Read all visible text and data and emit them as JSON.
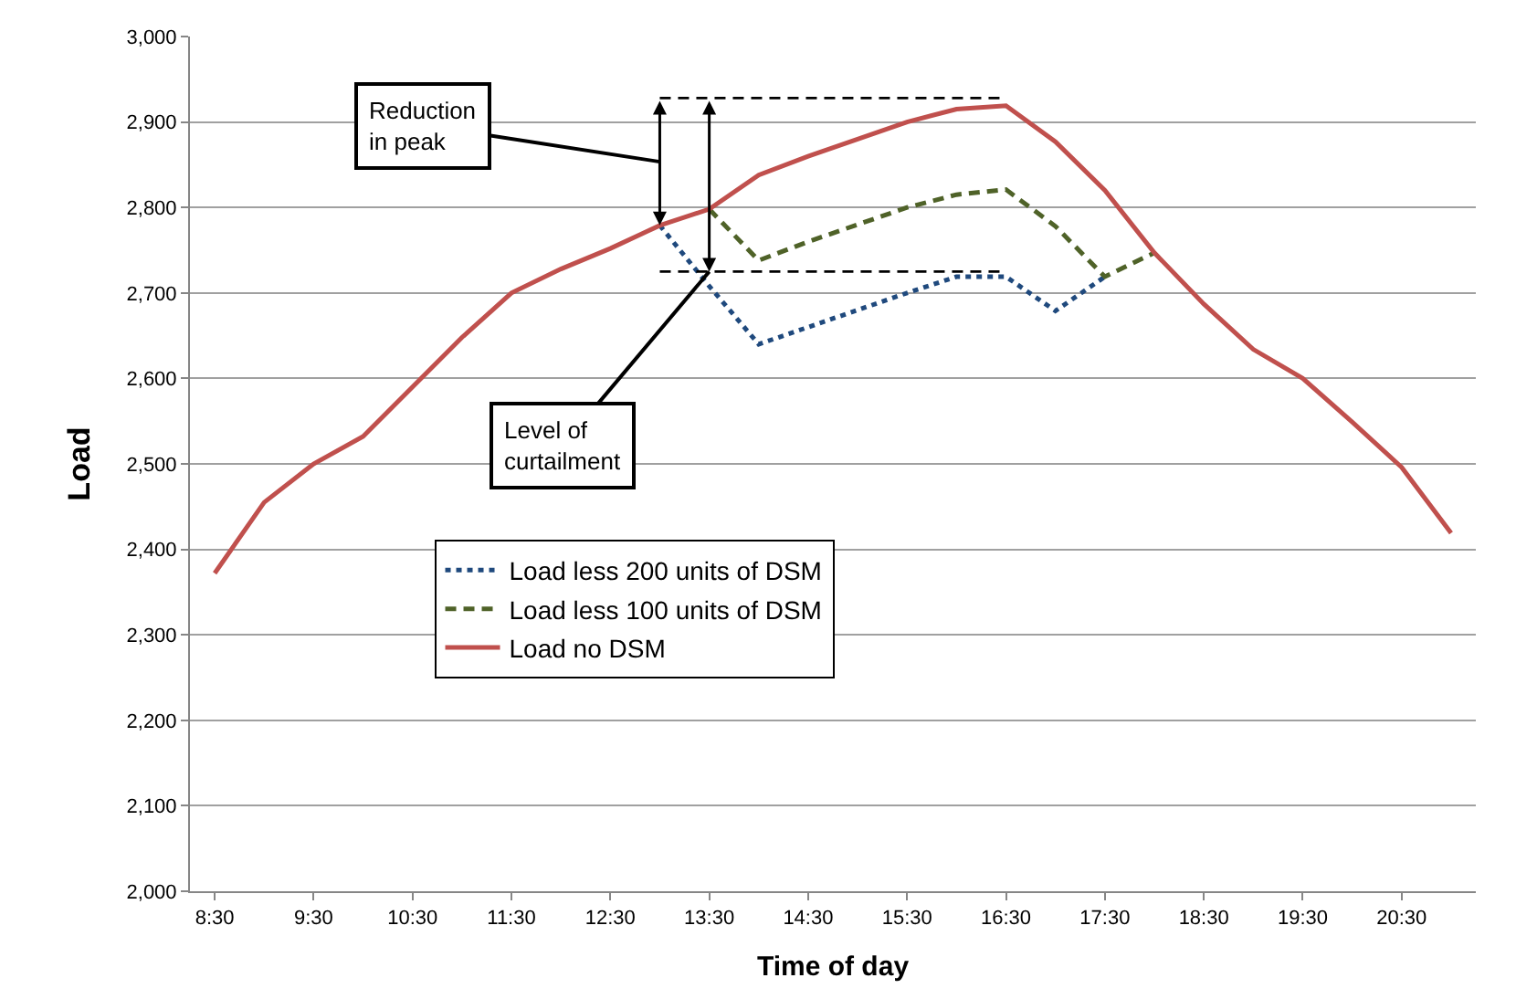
{
  "chart_data": {
    "type": "line",
    "xlabel": "Time of day",
    "ylabel": "Load",
    "categories": [
      "8:30",
      null,
      "9:30",
      null,
      "10:30",
      null,
      "11:30",
      null,
      "12:30",
      null,
      "13:30",
      null,
      "14:30",
      null,
      "15:30",
      null,
      "16:30",
      null,
      "17:30",
      null,
      "18:30",
      null,
      "19:30",
      null,
      "20:30",
      null
    ],
    "series": [
      {
        "name": "Load less 200 units of DSM",
        "color": "#1f497d",
        "line_style": "dotted",
        "values": [
          null,
          null,
          null,
          null,
          null,
          null,
          null,
          null,
          null,
          2779,
          2708,
          2640,
          2660,
          2680,
          2700,
          2719,
          2719,
          2679,
          2719,
          null,
          null,
          null,
          null,
          null,
          null,
          null
        ]
      },
      {
        "name": "Load less 100 units of DSM",
        "color": "#4f6228",
        "line_style": "dashed",
        "values": [
          null,
          null,
          null,
          null,
          null,
          null,
          null,
          null,
          null,
          null,
          2798,
          2738,
          2760,
          2780,
          2800,
          2815,
          2821,
          2778,
          2719,
          2747,
          null,
          null,
          null,
          null,
          null,
          null
        ]
      },
      {
        "name": "Load no DSM",
        "color": "#c0504d",
        "line_style": "solid",
        "values": [
          2372,
          2455,
          2500,
          2532,
          2590,
          2648,
          2700,
          2728,
          2752,
          2779,
          2798,
          2838,
          2860,
          2880,
          2900,
          2915,
          2919,
          2877,
          2820,
          2747,
          2687,
          2634,
          2600,
          2549,
          2496,
          2419
        ]
      },
      {
        "color": "#000000",
        "line_style": "dashed",
        "values": [
          null,
          null,
          null,
          null,
          null,
          null,
          null,
          null,
          null,
          2928,
          2928,
          2928,
          2928,
          2928,
          2928,
          2928,
          2928,
          null,
          null,
          null,
          null,
          null,
          null,
          null,
          null,
          null
        ]
      },
      {
        "color": "#000000",
        "line_style": "dashed",
        "values": [
          null,
          null,
          null,
          null,
          null,
          null,
          null,
          null,
          null,
          2725,
          2725,
          2725,
          2725,
          2725,
          2725,
          2725,
          2725,
          null,
          null,
          null,
          null,
          null,
          null,
          null,
          null,
          null
        ]
      }
    ],
    "ylim": [
      2000,
      3000
    ],
    "yticks": [
      {
        "value": 2000,
        "label": "2,000"
      },
      {
        "value": 2100,
        "label": "2,100"
      },
      {
        "value": 2200,
        "label": "2,200"
      },
      {
        "value": 2300,
        "label": "2,300"
      },
      {
        "value": 2400,
        "label": "2,400"
      },
      {
        "value": 2500,
        "label": "2,500"
      },
      {
        "value": 2600,
        "label": "2,600"
      },
      {
        "value": 2700,
        "label": "2,700"
      },
      {
        "value": 2800,
        "label": "2,800"
      },
      {
        "value": 2900,
        "label": "2,900"
      },
      {
        "value": 3000,
        "label": "3,000"
      }
    ],
    "grid": "y",
    "legend": "center",
    "marker": "none",
    "annotations": [
      "Reduction\nin peak",
      {
        "text": "Level of\ncurtailment",
        "x": "13:30",
        "y": 2725
      }
    ]
  }
}
